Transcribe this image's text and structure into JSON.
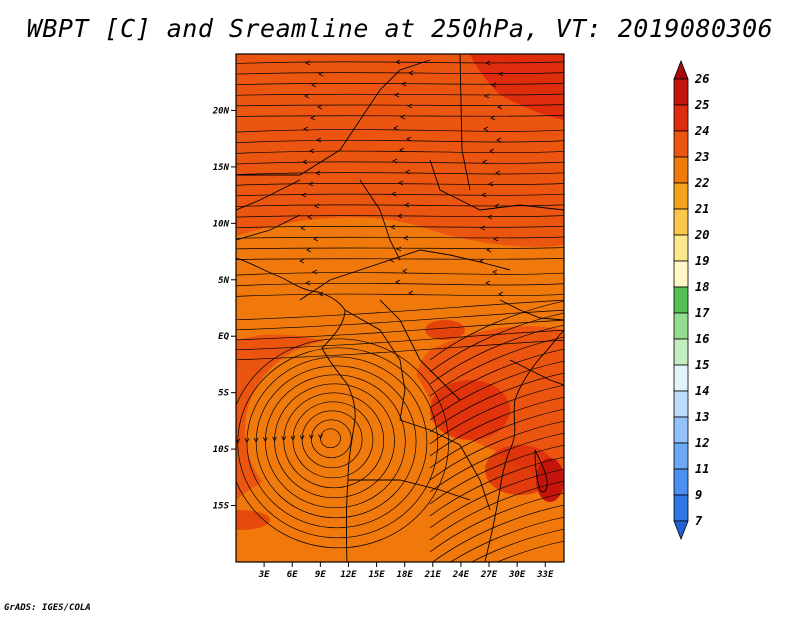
{
  "title": "WBPT [C] and Sreamline at 250hPa, VT: 2019080306",
  "credit": "GrADS: IGES/COLA",
  "chart_data": {
    "type": "heatmap",
    "title": "WBPT [C] and Sreamline at 250hPa, VT: 2019080306",
    "variable": "WBPT [C]",
    "overlay": "streamlines",
    "level": "250hPa",
    "valid_time": "2019080306",
    "xlabel": "",
    "ylabel": "",
    "xlim": [
      0,
      35
    ],
    "ylim": [
      -20,
      25
    ],
    "x_ticks": [
      {
        "value": 3,
        "label": "3E"
      },
      {
        "value": 6,
        "label": "6E"
      },
      {
        "value": 9,
        "label": "9E"
      },
      {
        "value": 12,
        "label": "12E"
      },
      {
        "value": 15,
        "label": "15E"
      },
      {
        "value": 18,
        "label": "18E"
      },
      {
        "value": 21,
        "label": "21E"
      },
      {
        "value": 24,
        "label": "24E"
      },
      {
        "value": 27,
        "label": "27E"
      },
      {
        "value": 30,
        "label": "30E"
      },
      {
        "value": 33,
        "label": "33E"
      }
    ],
    "y_ticks": [
      {
        "value": 20,
        "label": "20N"
      },
      {
        "value": 15,
        "label": "15N"
      },
      {
        "value": 10,
        "label": "10N"
      },
      {
        "value": 5,
        "label": "5N"
      },
      {
        "value": 0,
        "label": "EQ"
      },
      {
        "value": -5,
        "label": "5S"
      },
      {
        "value": -10,
        "label": "10S"
      },
      {
        "value": -15,
        "label": "15S"
      }
    ],
    "colorbar": {
      "levels": [
        "7",
        "9",
        "11",
        "12",
        "13",
        "14",
        "15",
        "16",
        "17",
        "18",
        "19",
        "20",
        "21",
        "22",
        "23",
        "24",
        "25",
        "26"
      ],
      "colors": [
        "#1f62d8",
        "#2f77e6",
        "#4b90ef",
        "#6ca8f4",
        "#93c2f8",
        "#bcdcfb",
        "#e3f3fc",
        "#c5eec0",
        "#93de8e",
        "#55c155",
        "#fff8c4",
        "#fce88c",
        "#f9c84a",
        "#f5a21c",
        "#f17a0c",
        "#ec5510",
        "#de2c0c",
        "#c4140c",
        "#a8090a"
      ],
      "extend": "both"
    },
    "value_range": [
      22,
      25
    ],
    "cyclone_center": {
      "lon": 10,
      "lat": -9
    }
  }
}
